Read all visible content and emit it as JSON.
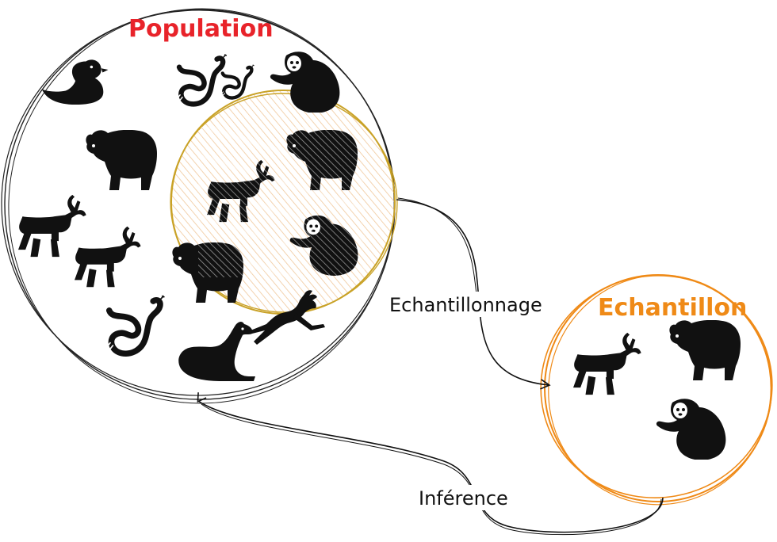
{
  "population": {
    "title": "Population",
    "title_color": "#e8232a"
  },
  "sample": {
    "title": "Echantillon",
    "title_color": "#ef8a17",
    "circle_color": "#ef8a17"
  },
  "overlap": {
    "circle_color": "#c9a227",
    "fill_color": "#f6dcb8"
  },
  "arrows": {
    "sampling_label": "Echantillonnage",
    "inference_label": "Inférence"
  },
  "colors": {
    "ink": "#111111",
    "sketch": "#222222"
  },
  "animals": {
    "population": [
      "duck-icon",
      "snake-icon",
      "snake-icon",
      "sloth-icon",
      "bear-icon",
      "bear-icon",
      "deer-icon",
      "deer-icon",
      "deer-icon",
      "sloth-icon",
      "bear-icon",
      "snake-icon",
      "sea-lion-icon",
      "leaping-deer-icon"
    ],
    "sample": [
      "deer-icon",
      "bear-icon",
      "sloth-icon"
    ]
  }
}
